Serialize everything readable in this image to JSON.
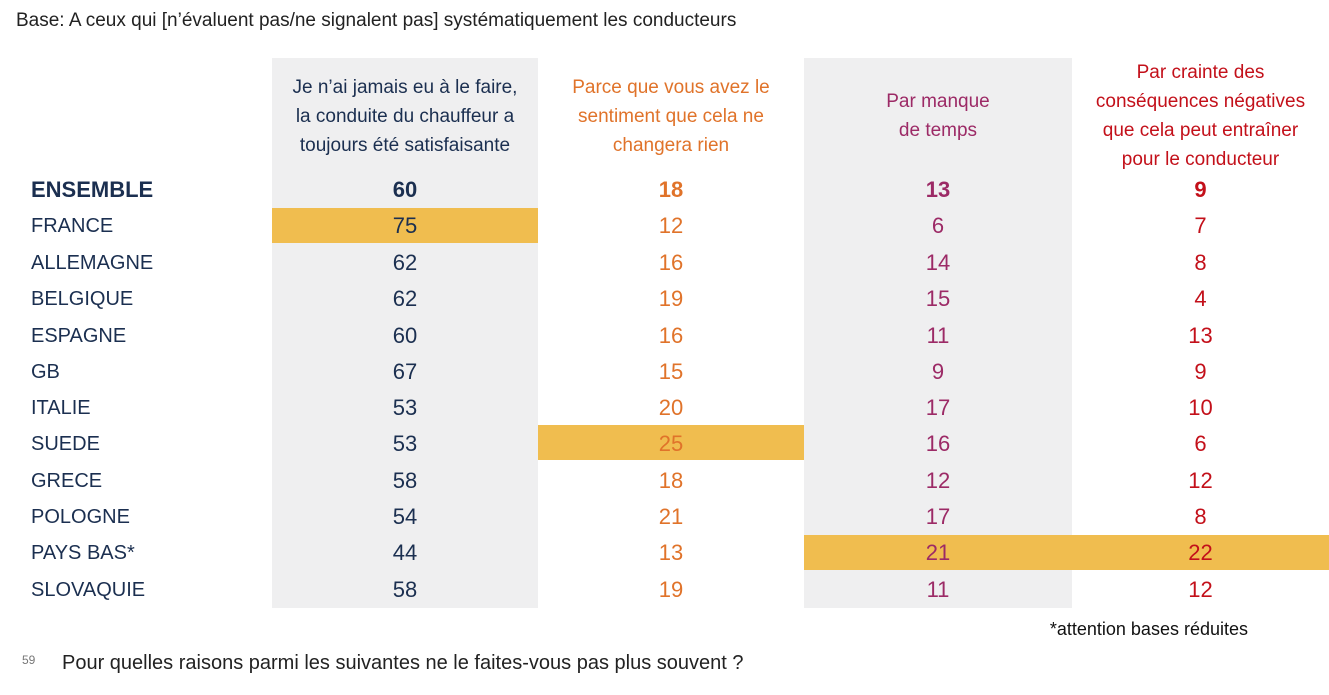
{
  "base_text": "Base: A ceux qui [n’évaluent pas/ne signalent pas] systématiquement les conducteurs",
  "headers": [
    {
      "lines": [
        "Je n’ai jamais eu à le faire,",
        "la conduite du chauffeur a",
        "toujours été satisfaisante"
      ],
      "color": "#1b2f50"
    },
    {
      "lines": [
        "Parce que vous avez le",
        "sentiment que cela ne",
        "changera rien"
      ],
      "color": "#e0732a"
    },
    {
      "lines": [
        "Par manque",
        "de temps"
      ],
      "color": "#9c2a66"
    },
    {
      "lines": [
        "Par crainte des",
        "conséquences négatives",
        "que cela peut entraîner",
        "pour le conducteur"
      ],
      "color": "#c3101a"
    }
  ],
  "rows": [
    {
      "label": "ENSEMBLE",
      "values": [
        "60",
        "18",
        "13",
        "9"
      ],
      "bold": true
    },
    {
      "label": "FRANCE",
      "values": [
        "75",
        "12",
        "6",
        "7"
      ]
    },
    {
      "label": "ALLEMAGNE",
      "values": [
        "62",
        "16",
        "14",
        "8"
      ]
    },
    {
      "label": "BELGIQUE",
      "values": [
        "62",
        "19",
        "15",
        "4"
      ]
    },
    {
      "label": "ESPAGNE",
      "values": [
        "60",
        "16",
        "11",
        "13"
      ]
    },
    {
      "label": "GB",
      "values": [
        "67",
        "15",
        "9",
        "9"
      ]
    },
    {
      "label": "ITALIE",
      "values": [
        "53",
        "20",
        "17",
        "10"
      ]
    },
    {
      "label": "SUEDE",
      "values": [
        "53",
        "25",
        "16",
        "6"
      ]
    },
    {
      "label": "GRECE",
      "values": [
        "58",
        "18",
        "12",
        "12"
      ]
    },
    {
      "label": "POLOGNE",
      "values": [
        "54",
        "21",
        "17",
        "8"
      ]
    },
    {
      "label": "PAYS BAS*",
      "values": [
        "44",
        "13",
        "21",
        "22"
      ]
    },
    {
      "label": "SLOVAQUIE",
      "values": [
        "58",
        "19",
        "11",
        "12"
      ]
    }
  ],
  "highlight_color": "#f0bd4f",
  "highlights": [
    {
      "row": "FRANCE",
      "column": 1
    },
    {
      "row": "SUEDE",
      "column": 2
    },
    {
      "row": "PAYS BAS*",
      "column": 3
    },
    {
      "row": "PAYS BAS*",
      "column": 4
    }
  ],
  "footnote": "*attention bases réduites",
  "page_number": "59",
  "question": "Pour quelles raisons parmi les suivantes ne le faites-vous pas plus souvent ?"
}
